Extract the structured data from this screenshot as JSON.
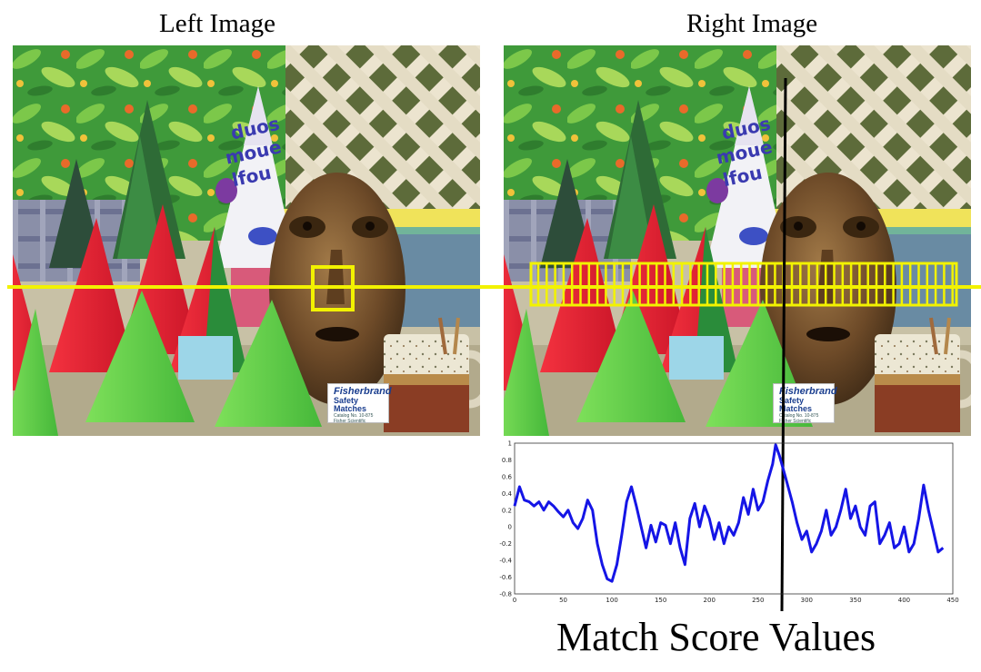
{
  "left_title": "Left Image",
  "right_title": "Right Image",
  "caption": "Match Score Values",
  "label_card": {
    "brand": "Fisherbrand",
    "product": "Safety Matches",
    "catalog": "Catalog No. 10-875",
    "maker": "Fisher Scientific"
  },
  "hat_text": [
    "duos",
    "moue",
    "lfou"
  ],
  "colors": {
    "scanline": "#f2f200",
    "match_curve": "#1515e6",
    "best_match_line": "#000000"
  },
  "chart_data": {
    "type": "line",
    "title": "",
    "xlabel": "",
    "ylabel": "",
    "xlim": [
      0,
      450
    ],
    "ylim": [
      -0.8,
      1
    ],
    "xticks": [
      0,
      50,
      100,
      150,
      200,
      250,
      300,
      350,
      400,
      450
    ],
    "yticks": [
      -0.8,
      -0.6,
      -0.4,
      -0.2,
      0,
      0.2,
      0.4,
      0.6,
      0.8,
      1
    ],
    "best_match_x": 268,
    "series": [
      {
        "name": "",
        "x": [
          0,
          5,
          10,
          15,
          20,
          25,
          30,
          35,
          40,
          45,
          50,
          55,
          60,
          65,
          70,
          75,
          80,
          85,
          90,
          95,
          100,
          105,
          110,
          115,
          120,
          125,
          130,
          135,
          140,
          145,
          150,
          155,
          160,
          165,
          170,
          175,
          180,
          185,
          190,
          195,
          200,
          205,
          210,
          215,
          220,
          225,
          230,
          235,
          240,
          245,
          250,
          255,
          260,
          265,
          268,
          272,
          278,
          285,
          290,
          295,
          300,
          305,
          310,
          315,
          320,
          325,
          330,
          335,
          340,
          345,
          350,
          355,
          360,
          365,
          370,
          375,
          380,
          385,
          390,
          395,
          400,
          405,
          410,
          415,
          420,
          425,
          430,
          435,
          440
        ],
        "values": [
          0.25,
          0.48,
          0.32,
          0.3,
          0.25,
          0.3,
          0.2,
          0.3,
          0.25,
          0.18,
          0.12,
          0.2,
          0.05,
          -0.02,
          0.1,
          0.32,
          0.2,
          -0.2,
          -0.45,
          -0.62,
          -0.65,
          -0.45,
          -0.1,
          0.3,
          0.48,
          0.25,
          0.0,
          -0.25,
          0.02,
          -0.18,
          0.05,
          0.02,
          -0.2,
          0.05,
          -0.25,
          -0.45,
          0.1,
          0.28,
          0.0,
          0.25,
          0.1,
          -0.15,
          0.05,
          -0.2,
          0.0,
          -0.1,
          0.05,
          0.35,
          0.15,
          0.45,
          0.2,
          0.3,
          0.55,
          0.75,
          0.98,
          0.85,
          0.6,
          0.3,
          0.05,
          -0.15,
          -0.05,
          -0.3,
          -0.2,
          -0.05,
          0.2,
          -0.1,
          0.0,
          0.2,
          0.45,
          0.1,
          0.25,
          0.0,
          -0.1,
          0.25,
          0.3,
          -0.2,
          -0.1,
          0.05,
          -0.25,
          -0.2,
          0.0,
          -0.3,
          -0.2,
          0.1,
          0.5,
          0.2,
          -0.05,
          -0.3,
          -0.25
        ]
      }
    ]
  }
}
